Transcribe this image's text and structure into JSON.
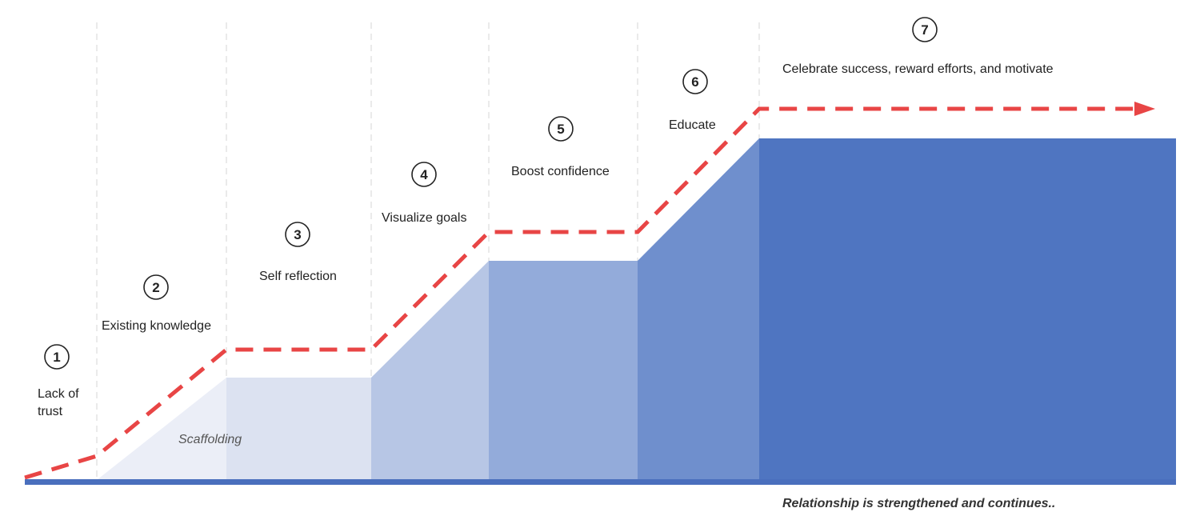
{
  "stages": [
    {
      "number": "1",
      "label_lines": [
        "Lack of",
        "trust"
      ]
    },
    {
      "number": "2",
      "label_lines": [
        "Existing knowledge"
      ]
    },
    {
      "number": "3",
      "label_lines": [
        "Self reflection"
      ]
    },
    {
      "number": "4",
      "label_lines": [
        "Visualize goals"
      ]
    },
    {
      "number": "5",
      "label_lines": [
        "Boost confidence"
      ]
    },
    {
      "number": "6",
      "label_lines": [
        "Educate"
      ]
    },
    {
      "number": "7",
      "label_lines": [
        "Celebrate success, reward efforts, and motivate"
      ]
    }
  ],
  "annotations": {
    "scaffolding": "Scaffolding",
    "relationship": "Relationship  is strengthened and continues.."
  },
  "colors": {
    "dashed_path": "#e84545",
    "baseline": "#4a6fbd",
    "grid_line": "#d6d6d6",
    "step_fills": [
      "#ebeef7",
      "#dce2f1",
      "#b7c6e5",
      "#93abda",
      "#6f8fcd",
      "#4f75c1"
    ]
  }
}
